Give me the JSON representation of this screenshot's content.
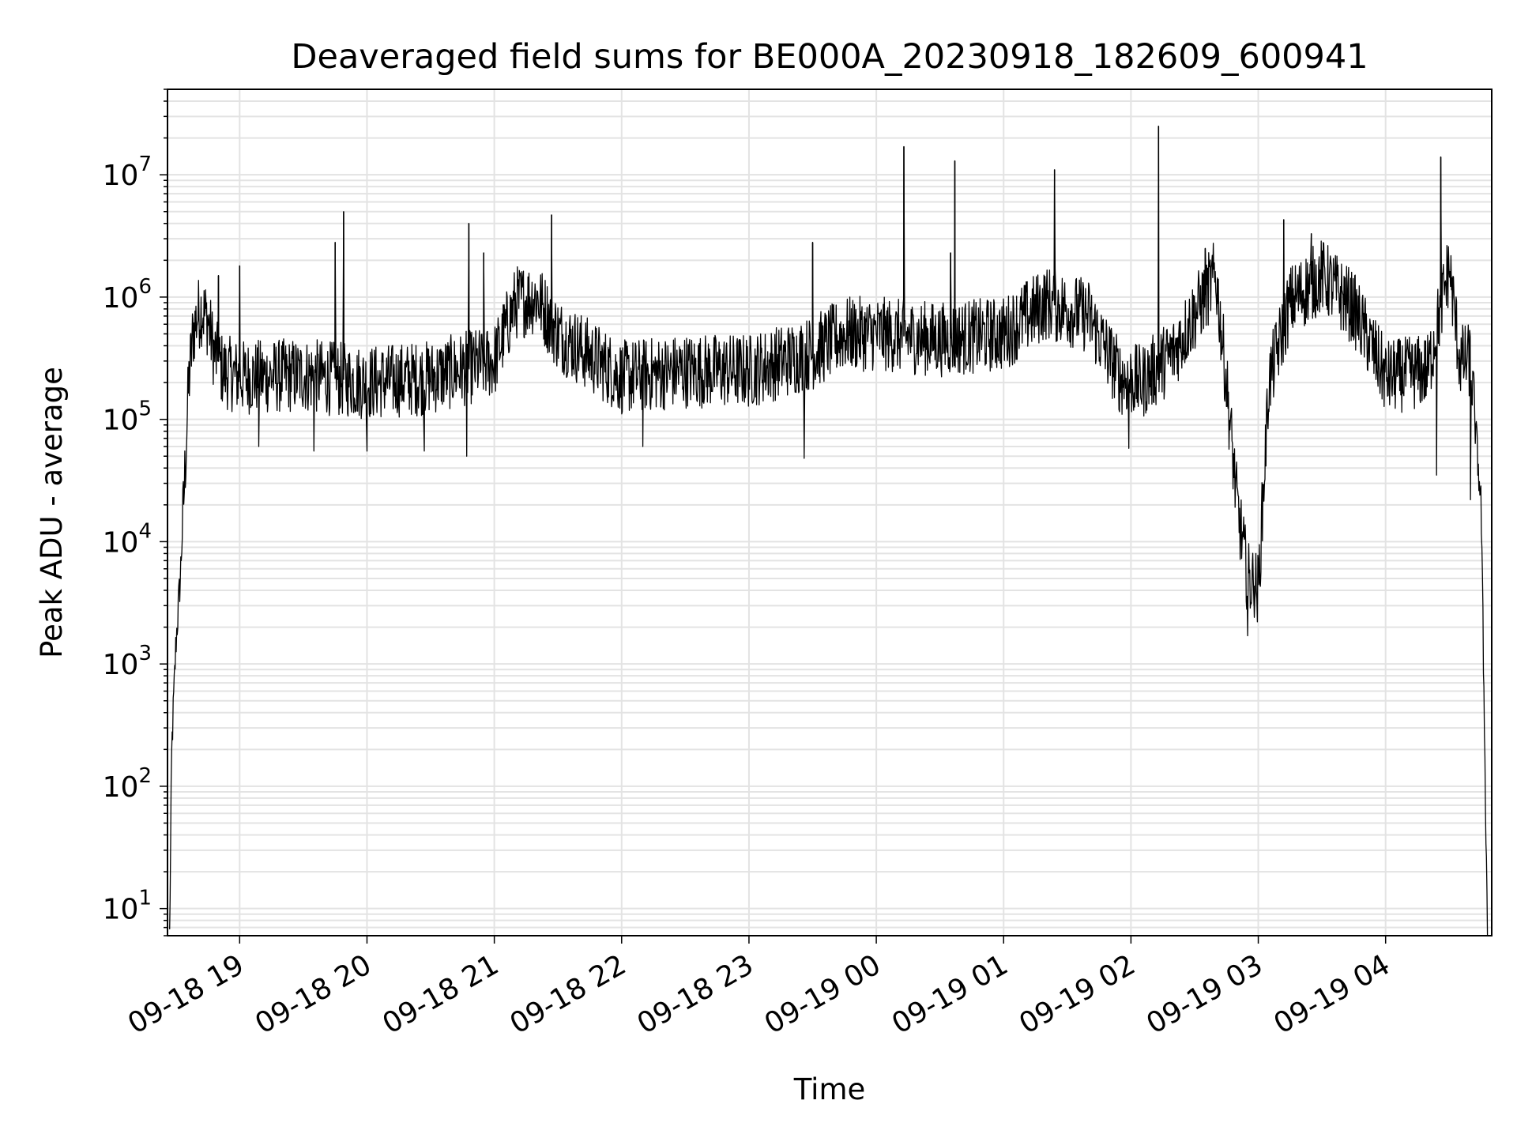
{
  "chart_data": {
    "type": "line",
    "title": "Deaveraged field sums for BE000A_20230918_182609_600941",
    "xlabel": "Time",
    "ylabel": "Peak ADU - average",
    "yscale": "log",
    "ylim": [
      6,
      50000000
    ],
    "xlim": [
      "09-18 18:26",
      "09-19 04:50"
    ],
    "grid": true,
    "line_color": "#000000",
    "grid_color": "#e3e3e3",
    "x_ticks": [
      {
        "t": "09-18 19:00",
        "label": "09-18 19"
      },
      {
        "t": "09-18 20:00",
        "label": "09-18 20"
      },
      {
        "t": "09-18 21:00",
        "label": "09-18 21"
      },
      {
        "t": "09-18 22:00",
        "label": "09-18 22"
      },
      {
        "t": "09-18 23:00",
        "label": "09-18 23"
      },
      {
        "t": "09-19 00:00",
        "label": "09-19 00"
      },
      {
        "t": "09-19 01:00",
        "label": "09-19 01"
      },
      {
        "t": "09-19 02:00",
        "label": "09-19 02"
      },
      {
        "t": "09-19 03:00",
        "label": "09-19 03"
      },
      {
        "t": "09-19 04:00",
        "label": "09-19 04"
      }
    ],
    "y_ticks": [
      {
        "value": 10,
        "base": "10",
        "exp": "1"
      },
      {
        "value": 100,
        "base": "10",
        "exp": "2"
      },
      {
        "value": 1000,
        "base": "10",
        "exp": "3"
      },
      {
        "value": 10000,
        "base": "10",
        "exp": "4"
      },
      {
        "value": 100000,
        "base": "10",
        "exp": "5"
      },
      {
        "value": 1000000,
        "base": "10",
        "exp": "6"
      },
      {
        "value": 10000000,
        "base": "10",
        "exp": "7"
      }
    ],
    "series": [
      {
        "points": [
          [
            "09-18 18:27",
            6
          ],
          [
            "09-18 18:28",
            200
          ],
          [
            "09-18 18:30",
            1500
          ],
          [
            "09-18 18:32",
            5000
          ],
          [
            "09-18 18:34",
            30000
          ],
          [
            "09-18 18:36",
            200000
          ],
          [
            "09-18 18:38",
            500000
          ],
          [
            "09-18 18:40",
            700000
          ],
          [
            "09-18 18:42",
            800000
          ],
          [
            "09-18 18:45",
            650000
          ],
          [
            "09-18 18:48",
            350000
          ],
          [
            "09-18 18:52",
            250000
          ],
          [
            "09-18 19:00",
            220000
          ],
          [
            "09-18 19:30",
            230000
          ],
          [
            "09-18 20:00",
            200000
          ],
          [
            "09-18 20:30",
            220000
          ],
          [
            "09-18 21:00",
            300000
          ],
          [
            "09-18 21:10",
            900000
          ],
          [
            "09-18 21:20",
            1000000
          ],
          [
            "09-18 21:30",
            500000
          ],
          [
            "09-18 22:00",
            220000
          ],
          [
            "09-18 22:30",
            250000
          ],
          [
            "09-18 23:00",
            250000
          ],
          [
            "09-18 23:30",
            350000
          ],
          [
            "09-18 23:45",
            500000
          ],
          [
            "09-19 00:00",
            500000
          ],
          [
            "09-19 00:30",
            450000
          ],
          [
            "09-19 01:00",
            500000
          ],
          [
            "09-19 01:20",
            900000
          ],
          [
            "09-19 01:40",
            700000
          ],
          [
            "09-19 01:55",
            220000
          ],
          [
            "09-19 02:05",
            200000
          ],
          [
            "09-19 02:20",
            350000
          ],
          [
            "09-19 02:40",
            1500000
          ],
          [
            "09-19 02:45",
            200000
          ],
          [
            "09-19 02:50",
            20000
          ],
          [
            "09-19 02:55",
            5000
          ],
          [
            "09-19 03:00",
            4000
          ],
          [
            "09-19 03:05",
            200000
          ],
          [
            "09-19 03:15",
            900000
          ],
          [
            "09-19 03:30",
            1500000
          ],
          [
            "09-19 03:45",
            800000
          ],
          [
            "09-19 04:00",
            220000
          ],
          [
            "09-19 04:20",
            250000
          ],
          [
            "09-19 04:30",
            1800000
          ],
          [
            "09-19 04:35",
            300000
          ],
          [
            "09-19 04:40",
            300000
          ],
          [
            "09-19 04:45",
            20000
          ],
          [
            "09-19 04:47",
            100
          ],
          [
            "09-19 04:48",
            6
          ]
        ],
        "spikes": [
          [
            "09-18 18:50",
            1500000
          ],
          [
            "09-18 19:00",
            1800000
          ],
          [
            "09-18 19:45",
            2800000
          ],
          [
            "09-18 19:49",
            5000000
          ],
          [
            "09-18 20:55",
            2300000
          ],
          [
            "09-18 20:48",
            4000000
          ],
          [
            "09-18 21:27",
            4700000
          ],
          [
            "09-18 23:30",
            2800000
          ],
          [
            "09-19 00:13",
            17000000
          ],
          [
            "09-19 00:37",
            13000000
          ],
          [
            "09-19 00:35",
            2300000
          ],
          [
            "09-19 01:24",
            11000000
          ],
          [
            "09-19 02:13",
            25000000
          ],
          [
            "09-19 02:35",
            2500000
          ],
          [
            "09-19 03:12",
            4300000
          ],
          [
            "09-19 03:25",
            3300000
          ],
          [
            "09-19 04:26",
            14000000
          ],
          [
            "09-19 02:58",
            3000
          ]
        ],
        "dips": [
          [
            "09-18 19:09",
            60000
          ],
          [
            "09-18 19:35",
            55000
          ],
          [
            "09-18 20:00",
            55000
          ],
          [
            "09-18 20:27",
            55000
          ],
          [
            "09-18 20:47",
            50000
          ],
          [
            "09-18 22:10",
            60000
          ],
          [
            "09-18 23:26",
            48000
          ],
          [
            "09-19 01:59",
            58000
          ],
          [
            "09-19 02:55",
            1700
          ],
          [
            "09-19 04:24",
            35000
          ],
          [
            "09-19 04:40",
            22000
          ]
        ]
      }
    ]
  }
}
